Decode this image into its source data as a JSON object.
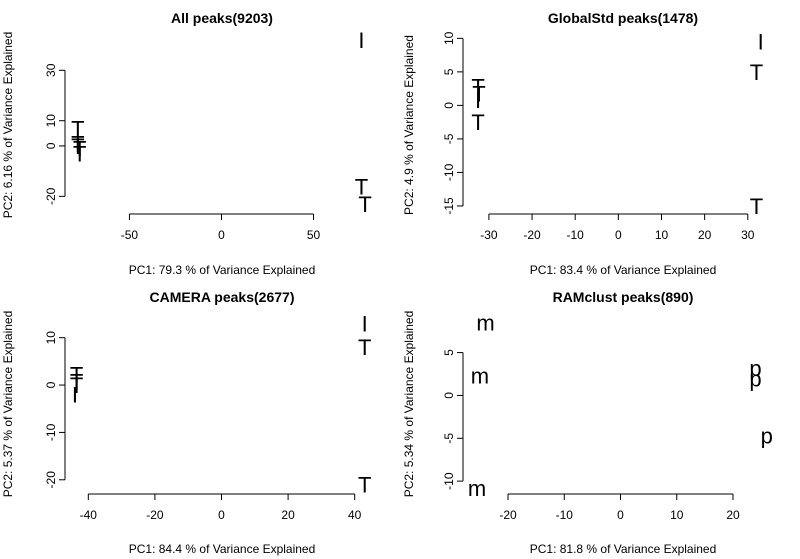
{
  "chart_data": [
    {
      "type": "scatter",
      "title": "All peaks(9203)",
      "xlabel": "PC1: 79.3 % of Variance Explained",
      "ylabel": "PC2: 6.16 % of Variance Explained",
      "xlim": [
        -85,
        85
      ],
      "ylim": [
        -27,
        44
      ],
      "xticks": [
        -50,
        0,
        50
      ],
      "yticks": [
        -20,
        0,
        10,
        30
      ],
      "points": [
        {
          "x": -78,
          "y": 7,
          "label": "T"
        },
        {
          "x": -78,
          "y": 1,
          "label": "T"
        },
        {
          "x": -78,
          "y": 0,
          "label": "T"
        },
        {
          "x": -77,
          "y": -1,
          "label": "T"
        },
        {
          "x": -77,
          "y": -3,
          "label": "T"
        },
        {
          "x": 76,
          "y": 42,
          "label": "I"
        },
        {
          "x": 76,
          "y": -16,
          "label": "T"
        },
        {
          "x": 78,
          "y": -23,
          "label": "T"
        }
      ]
    },
    {
      "type": "scatter",
      "title": "GlobalStd peaks(1478)",
      "xlabel": "PC1: 83.4 % of Variance Explained",
      "ylabel": "PC2: 4.9 % of Variance Explained",
      "xlim": [
        -36,
        37
      ],
      "ylim": [
        -16.2,
        10.5
      ],
      "xticks": [
        -30,
        -20,
        -10,
        0,
        10,
        20,
        30
      ],
      "yticks": [
        -15,
        -10,
        -5,
        0,
        5,
        10
      ],
      "points": [
        {
          "x": -32.5,
          "y": 2.8,
          "label": "T"
        },
        {
          "x": -32.3,
          "y": 1.8,
          "label": "T"
        },
        {
          "x": -32.5,
          "y": 0.8,
          "label": "I"
        },
        {
          "x": -32.5,
          "y": -2.5,
          "label": "T"
        },
        {
          "x": 33,
          "y": 9.5,
          "label": "I"
        },
        {
          "x": 32,
          "y": 5,
          "label": "T"
        },
        {
          "x": 32,
          "y": -15,
          "label": "T"
        }
      ]
    },
    {
      "type": "scatter",
      "title": "CAMERA peaks(2677)",
      "xlabel": "PC1: 84.4 % of Variance Explained",
      "ylabel": "PC2: 5.37 % of Variance Explained",
      "xlim": [
        -47,
        47
      ],
      "ylim": [
        -23,
        15
      ],
      "xticks": [
        -40,
        -20,
        0,
        20,
        40
      ],
      "yticks": [
        -20,
        -10,
        0,
        10
      ],
      "points": [
        {
          "x": -43.5,
          "y": 2.2,
          "label": "T"
        },
        {
          "x": -43.5,
          "y": 0.8,
          "label": "T"
        },
        {
          "x": -43.5,
          "y": 0,
          "label": "T"
        },
        {
          "x": -44,
          "y": -2,
          "label": "I"
        },
        {
          "x": 43,
          "y": 13,
          "label": "I"
        },
        {
          "x": 43,
          "y": 8,
          "label": "T"
        },
        {
          "x": 43,
          "y": -21,
          "label": "T"
        }
      ]
    },
    {
      "type": "scatter",
      "title": "RAMclust peaks(890)",
      "xlabel": "PC1: 81.8 % of Variance Explained",
      "ylabel": "PC2: 5.34 % of Variance Explained",
      "xlim": [
        -28,
        28
      ],
      "ylim": [
        -11.5,
        9.5
      ],
      "xticks": [
        -20,
        -10,
        0,
        10,
        20
      ],
      "yticks": [
        -10,
        -5,
        0,
        5
      ],
      "points": [
        {
          "x": -24,
          "y": 8.5,
          "label": "m"
        },
        {
          "x": -25,
          "y": 2.3,
          "label": "m"
        },
        {
          "x": -25.5,
          "y": -10.8,
          "label": "m"
        },
        {
          "x": 24,
          "y": 3.2,
          "label": "p"
        },
        {
          "x": 24,
          "y": 2,
          "label": "p"
        },
        {
          "x": 26,
          "y": -4.7,
          "label": "p"
        }
      ]
    }
  ]
}
